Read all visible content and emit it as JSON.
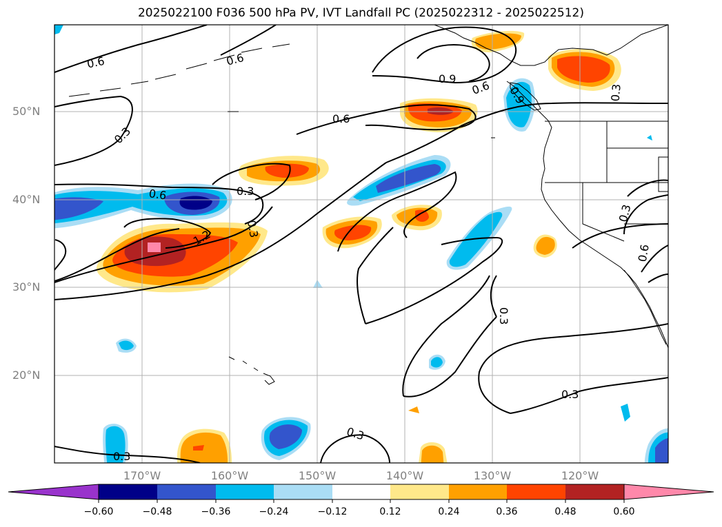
{
  "title": "2025022100 F036 500 hPa PV, IVT Landfall PC (2025022312 - 2025022512)",
  "map": {
    "projection": "cylindrical",
    "lon_range": [
      -180,
      -110
    ],
    "lat_range": [
      10,
      60
    ],
    "gridlines": true,
    "lat_labels": [
      "20°N",
      "30°N",
      "40°N",
      "50°N"
    ],
    "lon_labels": [
      "170°W",
      "160°W",
      "150°W",
      "140°W",
      "130°W",
      "120°W"
    ],
    "pv_contour_labels": [
      "0.6",
      "0.6",
      "0.3",
      "0.6",
      "0.9",
      "0.6",
      "0.3",
      "0.6",
      "0.3",
      "1.2",
      "0.9",
      "0.3",
      "0.3",
      "0.6",
      "0.3",
      "0.3",
      "0.3",
      "0.3"
    ],
    "shaded_pc_field": "IVT landfall PC loading (filled, diverging palette)"
  },
  "colorbar": {
    "extend": "both",
    "ticks": [
      "−0.60",
      "−0.48",
      "−0.36",
      "−0.24",
      "−0.12",
      "0.12",
      "0.24",
      "0.36",
      "0.48",
      "0.60"
    ],
    "colors": [
      "#9933cc",
      "#000088",
      "#3355cc",
      "#00bbee",
      "#aaddf5",
      "#ffffff",
      "#ffe88a",
      "#ffa000",
      "#ff4400",
      "#b22222",
      "#ff88aa"
    ]
  }
}
